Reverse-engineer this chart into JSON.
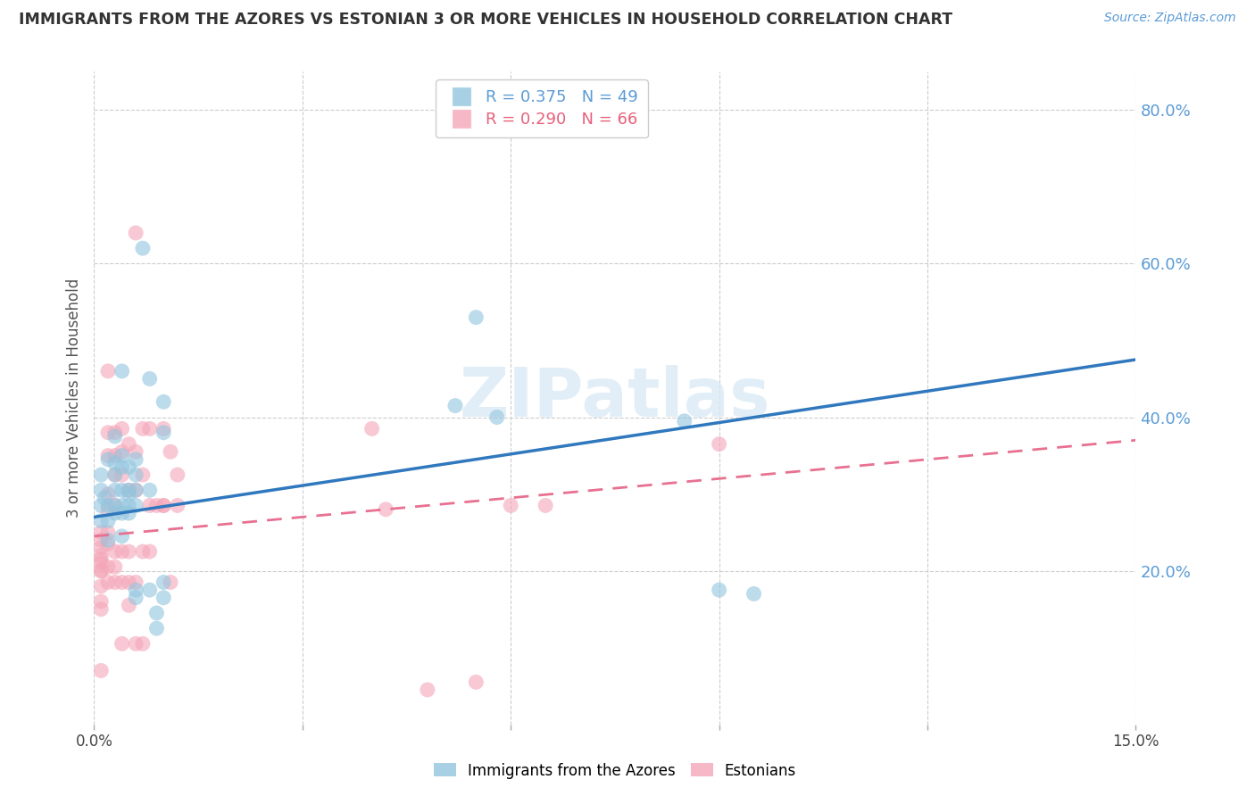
{
  "title": "IMMIGRANTS FROM THE AZORES VS ESTONIAN 3 OR MORE VEHICLES IN HOUSEHOLD CORRELATION CHART",
  "source": "Source: ZipAtlas.com",
  "ylabel": "3 or more Vehicles in Household",
  "right_yticks": [
    "80.0%",
    "60.0%",
    "40.0%",
    "20.0%"
  ],
  "right_ytick_vals": [
    0.8,
    0.6,
    0.4,
    0.2
  ],
  "x_min": 0.0,
  "x_max": 0.15,
  "y_min": 0.0,
  "y_max": 0.85,
  "blue_color": "#92c5de",
  "pink_color": "#f4a6b8",
  "blue_line_color": "#3078be",
  "pink_line_color": "#e87090",
  "legend_label_blue": "Immigrants from the Azores",
  "legend_label_pink": "Estonians",
  "watermark": "ZIPatlas",
  "blue_scatter": [
    [
      0.001,
      0.285
    ],
    [
      0.001,
      0.325
    ],
    [
      0.001,
      0.305
    ],
    [
      0.001,
      0.265
    ],
    [
      0.0015,
      0.295
    ],
    [
      0.002,
      0.345
    ],
    [
      0.002,
      0.285
    ],
    [
      0.002,
      0.265
    ],
    [
      0.002,
      0.24
    ],
    [
      0.003,
      0.375
    ],
    [
      0.003,
      0.34
    ],
    [
      0.003,
      0.325
    ],
    [
      0.003,
      0.305
    ],
    [
      0.003,
      0.285
    ],
    [
      0.003,
      0.275
    ],
    [
      0.004,
      0.46
    ],
    [
      0.004,
      0.35
    ],
    [
      0.004,
      0.335
    ],
    [
      0.004,
      0.305
    ],
    [
      0.004,
      0.285
    ],
    [
      0.004,
      0.275
    ],
    [
      0.004,
      0.245
    ],
    [
      0.005,
      0.335
    ],
    [
      0.005,
      0.305
    ],
    [
      0.005,
      0.3
    ],
    [
      0.005,
      0.285
    ],
    [
      0.005,
      0.275
    ],
    [
      0.006,
      0.345
    ],
    [
      0.006,
      0.325
    ],
    [
      0.006,
      0.305
    ],
    [
      0.006,
      0.285
    ],
    [
      0.006,
      0.175
    ],
    [
      0.006,
      0.165
    ],
    [
      0.007,
      0.62
    ],
    [
      0.008,
      0.45
    ],
    [
      0.008,
      0.305
    ],
    [
      0.008,
      0.175
    ],
    [
      0.009,
      0.145
    ],
    [
      0.009,
      0.125
    ],
    [
      0.01,
      0.42
    ],
    [
      0.01,
      0.38
    ],
    [
      0.01,
      0.185
    ],
    [
      0.01,
      0.165
    ],
    [
      0.052,
      0.415
    ],
    [
      0.055,
      0.53
    ],
    [
      0.058,
      0.4
    ],
    [
      0.085,
      0.395
    ],
    [
      0.09,
      0.175
    ],
    [
      0.095,
      0.17
    ]
  ],
  "pink_scatter": [
    [
      0.001,
      0.25
    ],
    [
      0.001,
      0.24
    ],
    [
      0.001,
      0.23
    ],
    [
      0.001,
      0.22
    ],
    [
      0.001,
      0.215
    ],
    [
      0.001,
      0.21
    ],
    [
      0.001,
      0.2
    ],
    [
      0.001,
      0.2
    ],
    [
      0.001,
      0.18
    ],
    [
      0.001,
      0.16
    ],
    [
      0.001,
      0.15
    ],
    [
      0.001,
      0.07
    ],
    [
      0.002,
      0.46
    ],
    [
      0.002,
      0.38
    ],
    [
      0.002,
      0.35
    ],
    [
      0.002,
      0.3
    ],
    [
      0.002,
      0.28
    ],
    [
      0.002,
      0.25
    ],
    [
      0.002,
      0.235
    ],
    [
      0.002,
      0.205
    ],
    [
      0.002,
      0.185
    ],
    [
      0.003,
      0.38
    ],
    [
      0.003,
      0.35
    ],
    [
      0.003,
      0.325
    ],
    [
      0.003,
      0.285
    ],
    [
      0.003,
      0.225
    ],
    [
      0.003,
      0.205
    ],
    [
      0.003,
      0.185
    ],
    [
      0.004,
      0.385
    ],
    [
      0.004,
      0.355
    ],
    [
      0.004,
      0.325
    ],
    [
      0.004,
      0.225
    ],
    [
      0.004,
      0.185
    ],
    [
      0.004,
      0.105
    ],
    [
      0.005,
      0.365
    ],
    [
      0.005,
      0.305
    ],
    [
      0.005,
      0.225
    ],
    [
      0.005,
      0.185
    ],
    [
      0.005,
      0.155
    ],
    [
      0.006,
      0.64
    ],
    [
      0.006,
      0.355
    ],
    [
      0.006,
      0.305
    ],
    [
      0.006,
      0.185
    ],
    [
      0.006,
      0.105
    ],
    [
      0.007,
      0.385
    ],
    [
      0.007,
      0.325
    ],
    [
      0.007,
      0.225
    ],
    [
      0.007,
      0.105
    ],
    [
      0.008,
      0.385
    ],
    [
      0.008,
      0.285
    ],
    [
      0.008,
      0.225
    ],
    [
      0.009,
      0.285
    ],
    [
      0.01,
      0.385
    ],
    [
      0.01,
      0.285
    ],
    [
      0.01,
      0.285
    ],
    [
      0.011,
      0.355
    ],
    [
      0.011,
      0.185
    ],
    [
      0.012,
      0.325
    ],
    [
      0.012,
      0.285
    ],
    [
      0.04,
      0.385
    ],
    [
      0.042,
      0.28
    ],
    [
      0.048,
      0.045
    ],
    [
      0.055,
      0.055
    ],
    [
      0.06,
      0.285
    ],
    [
      0.065,
      0.285
    ],
    [
      0.09,
      0.365
    ]
  ],
  "blue_line_x0": 0.0,
  "blue_line_y0": 0.27,
  "blue_line_x1": 0.15,
  "blue_line_y1": 0.475,
  "pink_line_x0": 0.0,
  "pink_line_y0": 0.245,
  "pink_line_x1": 0.15,
  "pink_line_y1": 0.37
}
